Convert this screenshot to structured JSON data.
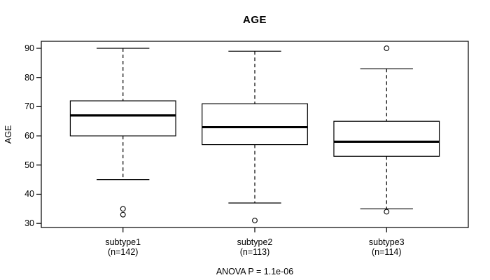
{
  "colors": {
    "foreground": "#000000",
    "background": "#ffffff",
    "box_fill": "#ffffff"
  },
  "chart_data": {
    "type": "boxplot",
    "title": "AGE",
    "ylabel": "AGE",
    "xlabel": "",
    "ylim": [
      28.6,
      92.4
    ],
    "yticks": [
      30,
      40,
      50,
      60,
      70,
      80,
      90
    ],
    "grid": false,
    "legend": "none",
    "annotation": "ANOVA P = 1.1e-06",
    "categories": [
      "subtype1",
      "subtype2",
      "subtype3"
    ],
    "category_sublabels": [
      "(n=142)",
      "(n=113)",
      "(n=114)"
    ],
    "groups": [
      {
        "label": "subtype1",
        "sublabel": "(n=142)",
        "n": 142,
        "whisker_low": 45,
        "q1": 60,
        "median": 67,
        "q3": 72,
        "whisker_high": 90,
        "outliers": [
          35,
          33
        ]
      },
      {
        "label": "subtype2",
        "sublabel": "(n=113)",
        "n": 113,
        "whisker_low": 37,
        "q1": 57,
        "median": 63,
        "q3": 71,
        "whisker_high": 89,
        "outliers": [
          31
        ]
      },
      {
        "label": "subtype3",
        "sublabel": "(n=114)",
        "n": 114,
        "whisker_low": 35,
        "q1": 53,
        "median": 58,
        "q3": 65,
        "whisker_high": 83,
        "outliers": [
          90,
          34
        ]
      }
    ]
  }
}
